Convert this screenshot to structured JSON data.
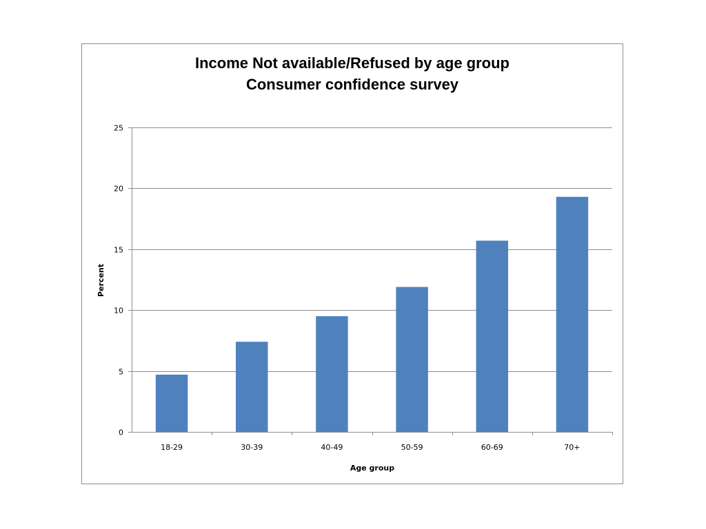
{
  "chart_data": {
    "type": "bar",
    "title_lines": [
      "Income Not available/Refused by age group",
      "Consumer confidence survey"
    ],
    "xlabel": "Age group",
    "ylabel": "Percent",
    "categories": [
      "18-29",
      "30-39",
      "40-49",
      "50-59",
      "60-69",
      "70+"
    ],
    "values": [
      4.7,
      7.4,
      9.5,
      11.9,
      15.7,
      19.3
    ],
    "ylim": [
      0,
      25
    ],
    "yticks": [
      "0",
      "5",
      "10",
      "15",
      "20",
      "25"
    ],
    "grid": true,
    "legend": "none",
    "colors": {
      "bar": "#4f81bd",
      "grid": "#8c8c8c",
      "axis": "#8c8c8c"
    }
  }
}
